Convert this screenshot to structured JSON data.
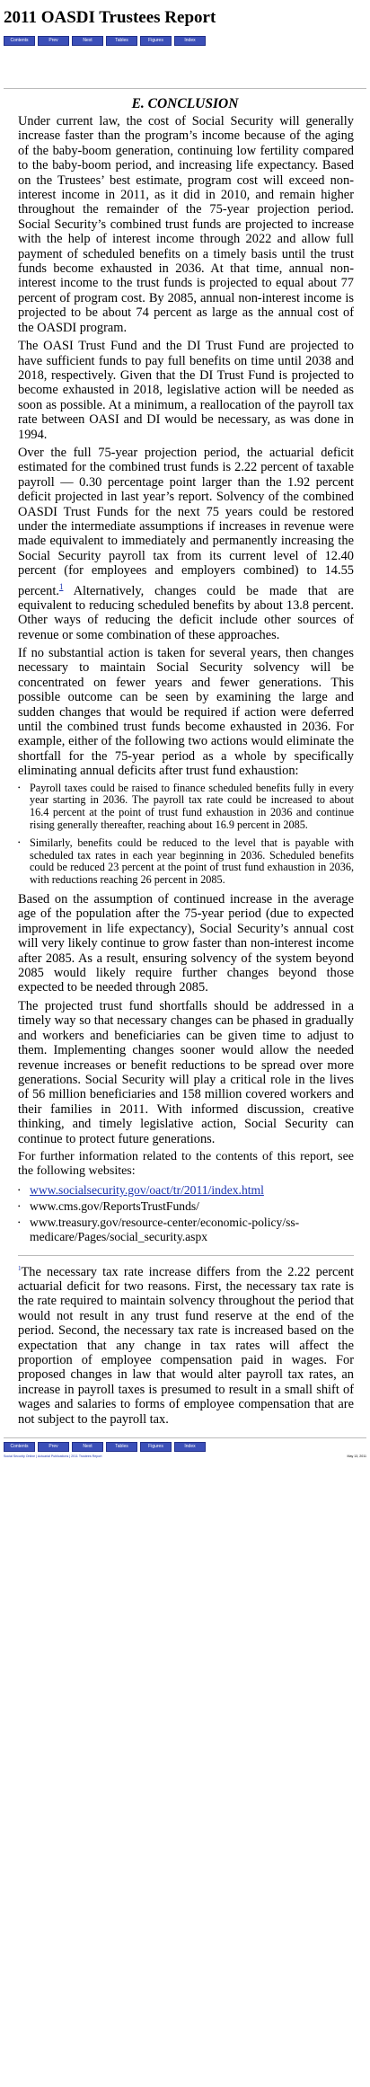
{
  "title": "2011 OASDI Trustees Report",
  "nav": [
    "Contents",
    "Prev",
    "Next",
    "Tables",
    "Figures",
    "Index"
  ],
  "section_title": "E. CONCLUSION",
  "paragraphs": [
    "Under current law, the cost of Social Security will generally increase faster than the program’s income because of the aging of the baby-boom generation, continuing low fertility compared to the baby-boom period, and increasing life expectancy. Based on the Trustees’ best estimate, program cost will exceed non-interest income in 2011, as it did in 2010, and remain higher throughout the remainder of the 75-year projection period. Social Security’s combined trust funds are projected to increase with the help of interest income through 2022 and allow full payment of scheduled benefits on a timely basis until the trust funds become exhausted in 2036. At that time, annual non-interest income to the trust funds is projected to equal about 77 percent of program cost. By 2085, annual non-interest income is projected to be about 74 percent as large as the annual cost of the OASDI program.",
    "The OASI Trust Fund and the DI Trust Fund are projected to have sufficient funds to pay full benefits on time until 2038 and 2018, respectively. Given that the DI Trust Fund is projected to become exhausted in 2018, legislative action will be needed as soon as possible. At a minimum, a reallocation of the payroll tax rate between OASI and DI would be necessary, as was done in 1994."
  ],
  "para3": {
    "before": "Over the full 75-year projection period, the actuarial deficit estimated for the combined trust funds is 2.22 percent of taxable payroll — 0.30 percentage point larger than the 1.92 percent deficit projected in last year’s report. Solvency of the combined OASDI Trust Funds for the next 75 years could be restored under the intermediate assumptions if increases in revenue were made equivalent to immediately and permanently increasing the Social Security payroll tax from its current level of 12.40 percent (for employees and employers combined) to 14.55 percent.",
    "footnote_ref": "1",
    "after": " Alternatively, changes could be made that are equivalent to reducing scheduled benefits by about 13.8 percent. Other ways of reducing the deficit include other sources of revenue or some combination of these approaches."
  },
  "para4": "If no substantial action is taken for several years, then changes necessary to maintain Social Security solvency will be concentrated on fewer years and fewer generations. This possible outcome can be seen by examining the large and sudden changes that would be required if action were deferred until the combined trust funds become exhausted in 2036. For example, either of the following two actions would eliminate the shortfall for the 75-year period as a whole by specifically eliminating annual deficits after trust fund exhaustion:",
  "bullets": [
    "Payroll taxes could be raised to finance scheduled benefits fully in every year starting in 2036. The payroll tax rate could be increased to about 16.4 percent at the point of trust fund exhaustion in 2036 and continue rising generally thereafter, reaching about 16.9 percent in 2085.",
    "Similarly, benefits could be reduced to the level that is payable with scheduled tax rates in each year beginning in 2036. Scheduled benefits could be reduced 23 percent at the point of trust fund exhaustion in 2036, with reductions reaching 26 percent in 2085."
  ],
  "para5": "Based on the assumption of continued increase in the average age of the population after the 75-year period (due to expected improvement in life expectancy), Social Security’s annual cost will very likely continue to grow faster than non-interest income after 2085. As a result, ensuring solvency of the system beyond 2085 would likely require further changes beyond those expected to be needed through 2085.",
  "para6": "The projected trust fund shortfalls should be addressed in a timely way so that necessary changes can be phased in gradually and workers and beneficiaries can be given time to adjust to them. Implementing changes sooner would allow the needed revenue increases or benefit reductions to be spread over more generations. Social Security will play a critical role in the lives of 56 million beneficiaries and 158 million covered workers and their families in 2011. With informed discussion, creative thinking, and timely legislative action, Social Security can continue to protect future generations.",
  "para7": "For further information related to the contents of this report, see the following websites:",
  "links": [
    "www.socialsecurity.gov/oact/tr/2011/index.html",
    "www.cms.gov/ReportsTrustFunds/",
    "www.treasury.gov/resource-center/economic-policy/ss-medicare/Pages/social_security.aspx"
  ],
  "footnote": {
    "marker": "1",
    "text": "The necessary tax rate increase differs from the 2.22 percent actuarial deficit for two reasons. First, the necessary tax rate is the rate required to maintain solvency throughout the period that would not result in any trust fund reserve at the end of the period. Second, the necessary tax rate is increased based on the expectation that any change in tax rates will affect the proportion of employee compensation paid in wages. For proposed changes in law that would alter payroll tax rates, an increase in payroll taxes is presumed to result in a small shift of wages and salaries to forms of employee compensation that are not subject to the payroll tax."
  },
  "footer": {
    "links": "Social Security Online | Actuarial Publications | 2011 Trustees Report",
    "date": "May 13, 2011"
  }
}
